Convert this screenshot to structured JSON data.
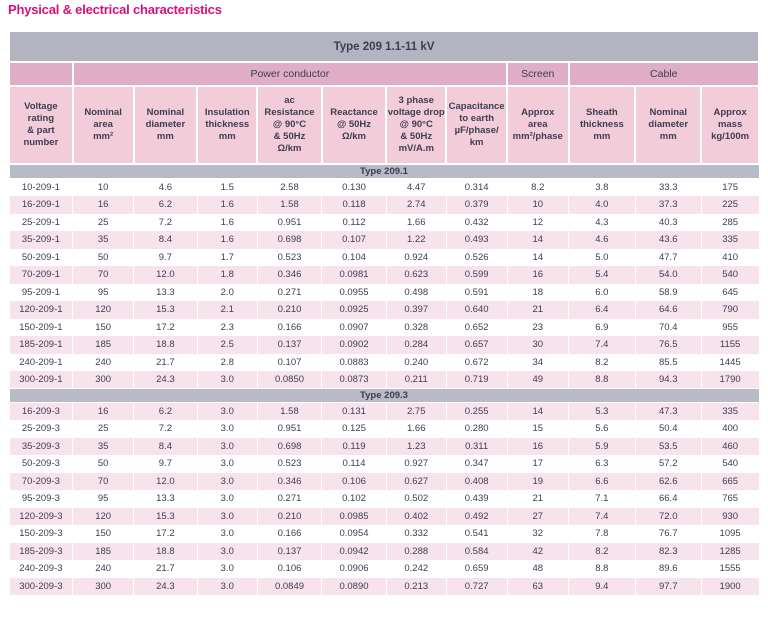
{
  "page_title": "Physical & electrical characteristics",
  "colors": {
    "accent": "#d8107b",
    "title_bar_background": "#b2b4c2",
    "section_bar_background": "#b9bac7",
    "group_header_background": "#dfadc6",
    "column_header_background": "#f2ccd9",
    "row_stripe_background": "#f7e3ec",
    "text": "#3d3d52"
  },
  "table": {
    "title": "Type 209  1.1-11 kV",
    "group_headers": [
      {
        "label": "",
        "span": 1
      },
      {
        "label": "Power conductor",
        "span": 7
      },
      {
        "label": "Screen",
        "span": 1
      },
      {
        "label": "Cable",
        "span": 3
      }
    ],
    "columns": [
      "Voltage\nrating\n& part\nnumber",
      "Nominal\narea\nmm²",
      "Nominal\ndiameter\nmm",
      "Insulation\nthickness\nmm",
      "ac\nResistance\n@ 90°C\n& 50Hz\nΩ/km",
      "Reactance\n@ 50Hz\nΩ/km",
      "3 phase\nvoltage drop\n@ 90°C\n& 50Hz\nmV/A.m",
      "Capacitance\nto earth\nµF/phase/\nkm",
      "Approx\narea\nmm²/phase",
      "Sheath\nthickness\nmm",
      "Nominal\ndiameter\nmm",
      "Approx\nmass\nkg/100m"
    ],
    "sections": [
      {
        "label": "Type 209.1",
        "rows": [
          [
            "10-209-1",
            "10",
            "4.6",
            "1.5",
            "2.58",
            "0.130",
            "4.47",
            "0.314",
            "8.2",
            "3.8",
            "33.3",
            "175"
          ],
          [
            "16-209-1",
            "16",
            "6.2",
            "1.6",
            "1.58",
            "0.118",
            "2.74",
            "0.379",
            "10",
            "4.0",
            "37.3",
            "225"
          ],
          [
            "25-209-1",
            "25",
            "7.2",
            "1.6",
            "0.951",
            "0.112",
            "1.66",
            "0.432",
            "12",
            "4.3",
            "40.3",
            "285"
          ],
          [
            "35-209-1",
            "35",
            "8.4",
            "1.6",
            "0.698",
            "0.107",
            "1.22",
            "0.493",
            "14",
            "4.6",
            "43.6",
            "335"
          ],
          [
            "50-209-1",
            "50",
            "9.7",
            "1.7",
            "0.523",
            "0.104",
            "0.924",
            "0.526",
            "14",
            "5.0",
            "47.7",
            "410"
          ],
          [
            "70-209-1",
            "70",
            "12.0",
            "1.8",
            "0.346",
            "0.0981",
            "0.623",
            "0.599",
            "16",
            "5.4",
            "54.0",
            "540"
          ],
          [
            "95-209-1",
            "95",
            "13.3",
            "2.0",
            "0.271",
            "0.0955",
            "0.498",
            "0.591",
            "18",
            "6.0",
            "58.9",
            "645"
          ],
          [
            "120-209-1",
            "120",
            "15.3",
            "2.1",
            "0.210",
            "0.0925",
            "0.397",
            "0.640",
            "21",
            "6.4",
            "64.6",
            "790"
          ],
          [
            "150-209-1",
            "150",
            "17.2",
            "2.3",
            "0.166",
            "0.0907",
            "0.328",
            "0.652",
            "23",
            "6.9",
            "70.4",
            "955"
          ],
          [
            "185-209-1",
            "185",
            "18.8",
            "2.5",
            "0.137",
            "0.0902",
            "0.284",
            "0.657",
            "30",
            "7.4",
            "76.5",
            "1155"
          ],
          [
            "240-209-1",
            "240",
            "21.7",
            "2.8",
            "0.107",
            "0.0883",
            "0.240",
            "0.672",
            "34",
            "8.2",
            "85.5",
            "1445"
          ],
          [
            "300-209-1",
            "300",
            "24.3",
            "3.0",
            "0.0850",
            "0.0873",
            "0.211",
            "0.719",
            "49",
            "8.8",
            "94.3",
            "1790"
          ]
        ]
      },
      {
        "label": "Type 209.3",
        "rows": [
          [
            "16-209-3",
            "16",
            "6.2",
            "3.0",
            "1.58",
            "0.131",
            "2.75",
            "0.255",
            "14",
            "5.3",
            "47.3",
            "335"
          ],
          [
            "25-209-3",
            "25",
            "7.2",
            "3.0",
            "0.951",
            "0.125",
            "1.66",
            "0.280",
            "15",
            "5.6",
            "50.4",
            "400"
          ],
          [
            "35-209-3",
            "35",
            "8.4",
            "3.0",
            "0.698",
            "0.119",
            "1.23",
            "0.311",
            "16",
            "5.9",
            "53.5",
            "460"
          ],
          [
            "50-209-3",
            "50",
            "9.7",
            "3.0",
            "0.523",
            "0.114",
            "0.927",
            "0.347",
            "17",
            "6.3",
            "57.2",
            "540"
          ],
          [
            "70-209-3",
            "70",
            "12.0",
            "3.0",
            "0.346",
            "0.106",
            "0.627",
            "0.408",
            "19",
            "6.6",
            "62.6",
            "665"
          ],
          [
            "95-209-3",
            "95",
            "13.3",
            "3.0",
            "0.271",
            "0.102",
            "0.502",
            "0.439",
            "21",
            "7.1",
            "66.4",
            "765"
          ],
          [
            "120-209-3",
            "120",
            "15.3",
            "3.0",
            "0.210",
            "0.0985",
            "0.402",
            "0.492",
            "27",
            "7.4",
            "72.0",
            "930"
          ],
          [
            "150-209-3",
            "150",
            "17.2",
            "3.0",
            "0.166",
            "0.0954",
            "0.332",
            "0.541",
            "32",
            "7.8",
            "76.7",
            "1095"
          ],
          [
            "185-209-3",
            "185",
            "18.8",
            "3.0",
            "0.137",
            "0.0942",
            "0.288",
            "0.584",
            "42",
            "8.2",
            "82.3",
            "1285"
          ],
          [
            "240-209-3",
            "240",
            "21.7",
            "3.0",
            "0.106",
            "0.0906",
            "0.242",
            "0.659",
            "48",
            "8.8",
            "89.6",
            "1555"
          ],
          [
            "300-209-3",
            "300",
            "24.3",
            "3.0",
            "0.0849",
            "0.0890",
            "0.213",
            "0.727",
            "63",
            "9.4",
            "97.7",
            "1900"
          ]
        ]
      }
    ]
  }
}
